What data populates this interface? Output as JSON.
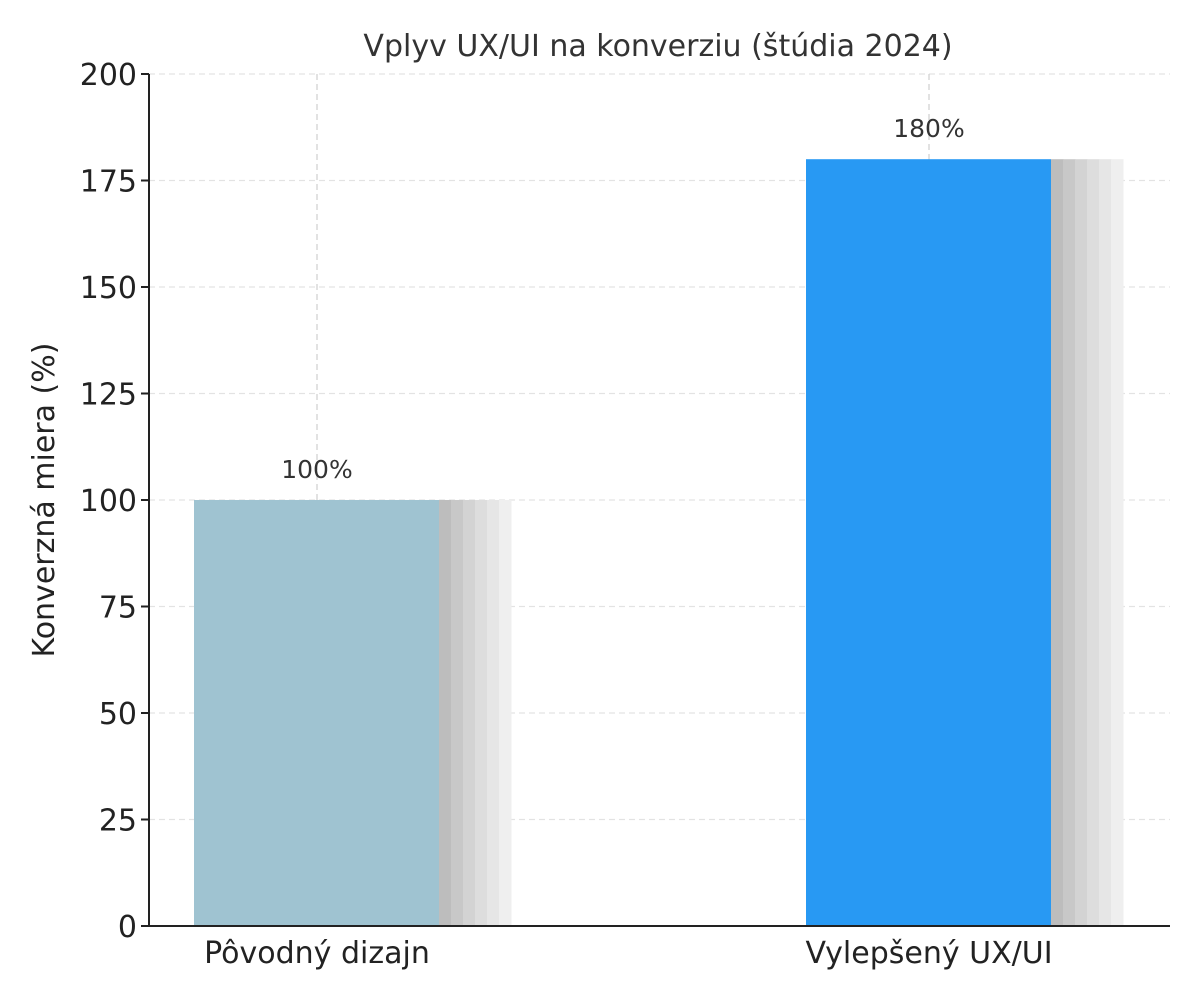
{
  "chart_data": {
    "type": "bar",
    "title": "Vplyv UX/UI na konverziu (štúdia 2024)",
    "xlabel": "",
    "ylabel": "Konverzná miera (%)",
    "categories": [
      "Pôvodný dizajn",
      "Vylepšený UX/UI"
    ],
    "values": [
      100,
      180
    ],
    "data_labels": [
      "100%",
      "180%"
    ],
    "bar_colors": [
      "#9fc3d1",
      "#2899f3"
    ],
    "shadow_colors": [
      "#bdbdbd",
      "#c8c8c8",
      "#d3d3d3",
      "#dddddd",
      "#e6e6e6",
      "#efefef"
    ],
    "ylim": [
      0,
      200
    ],
    "yticks": [
      0,
      25,
      50,
      75,
      100,
      125,
      150,
      175,
      200
    ],
    "grid": true,
    "legend": "none"
  }
}
